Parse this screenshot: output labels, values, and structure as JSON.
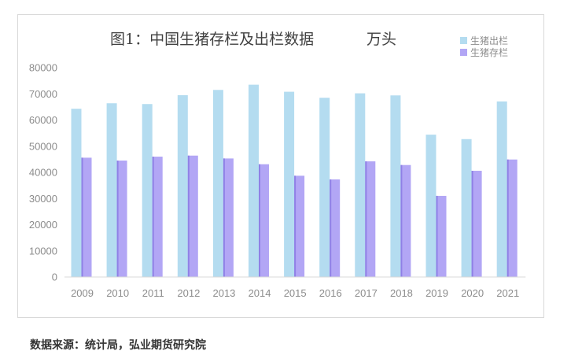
{
  "chart_data": {
    "type": "bar",
    "title": "图1：中国生猪存栏及出栏数据",
    "unit": "万头",
    "categories": [
      "2009",
      "2010",
      "2011",
      "2012",
      "2013",
      "2014",
      "2015",
      "2016",
      "2017",
      "2018",
      "2019",
      "2020",
      "2021"
    ],
    "series": [
      {
        "name": "生猪出栏",
        "color": "#b4dcf0",
        "values": [
          64300,
          66400,
          66100,
          69500,
          71500,
          73500,
          70800,
          68500,
          70200,
          69400,
          54400,
          52700,
          67100
        ]
      },
      {
        "name": "生猪存栏",
        "color": "#b2a6f5",
        "values": [
          45600,
          44500,
          46000,
          46400,
          45300,
          43100,
          38700,
          37300,
          44200,
          42800,
          31000,
          40600,
          44900
        ]
      }
    ],
    "ylim": [
      0,
      80000
    ],
    "yticks": [
      0,
      10000,
      20000,
      30000,
      40000,
      50000,
      60000,
      70000,
      80000
    ],
    "ytick_labels": [
      "0",
      "10000",
      "20000",
      "30000",
      "40000",
      "50000",
      "60000",
      "70000",
      "80000"
    ],
    "grid": false,
    "legend_position": "top-right"
  },
  "source": "数据来源：统计局，弘业期货研究院"
}
